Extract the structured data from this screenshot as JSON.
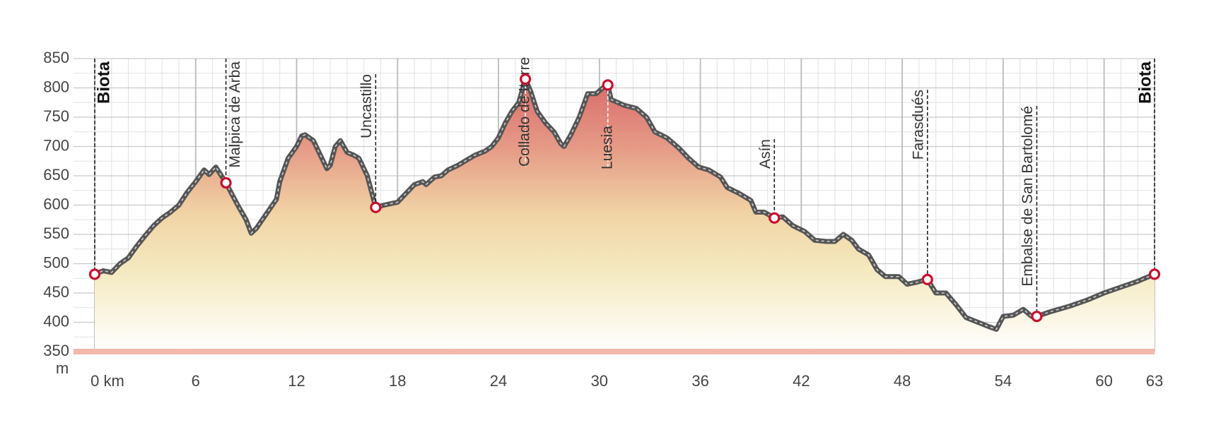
{
  "chart_data": {
    "type": "area",
    "y_unit": "m",
    "x": [
      0,
      0.5,
      1,
      1.5,
      2,
      2.5,
      3,
      3.5,
      4,
      4.5,
      5,
      5.5,
      6,
      6.5,
      6.8,
      7.2,
      7.8,
      8.5,
      9,
      9.3,
      9.6,
      10.2,
      10.8,
      11,
      11.5,
      12,
      12.3,
      12.5,
      13,
      13.5,
      13.8,
      14,
      14.3,
      14.6,
      15,
      15.4,
      15.7,
      16.2,
      16.7,
      17.2,
      18,
      18.5,
      19,
      19.5,
      19.7,
      20.2,
      20.6,
      21,
      21.6,
      22,
      22.6,
      23.2,
      23.6,
      24,
      24.4,
      24.8,
      25.2,
      25.4,
      25.6,
      25.9,
      26.3,
      26.8,
      27.3,
      27.7,
      27.9,
      28.3,
      28.8,
      29.3,
      29.8,
      30.2,
      30.5,
      30.7,
      31.5,
      32.2,
      32.8,
      33.3,
      34,
      34.7,
      35.3,
      35.9,
      36.5,
      37.2,
      37.6,
      38.3,
      39,
      39.3,
      39.8,
      40.4,
      40.9,
      41.5,
      42.2,
      42.8,
      43.5,
      44,
      44.5,
      45,
      45.4,
      46,
      46.5,
      47,
      47.8,
      48.3,
      48.8,
      49.5,
      50,
      50.6,
      51.2,
      51.8,
      52.5,
      53.2,
      53.6,
      54,
      54.6,
      55.2,
      55.7,
      56,
      56.8,
      58,
      59,
      60,
      61,
      62,
      63
    ],
    "values": [
      482,
      488,
      485,
      500,
      510,
      530,
      548,
      565,
      578,
      588,
      600,
      622,
      640,
      660,
      652,
      665,
      638,
      600,
      575,
      552,
      560,
      585,
      610,
      640,
      680,
      700,
      718,
      720,
      710,
      680,
      662,
      668,
      700,
      710,
      690,
      685,
      680,
      650,
      596,
      600,
      605,
      620,
      635,
      640,
      635,
      648,
      650,
      660,
      668,
      675,
      685,
      692,
      700,
      715,
      740,
      760,
      775,
      795,
      815,
      795,
      760,
      740,
      725,
      705,
      700,
      720,
      750,
      790,
      790,
      800,
      805,
      780,
      770,
      765,
      750,
      725,
      715,
      698,
      680,
      665,
      660,
      648,
      630,
      620,
      608,
      588,
      588,
      578,
      580,
      565,
      555,
      540,
      538,
      538,
      550,
      540,
      525,
      515,
      490,
      478,
      478,
      465,
      468,
      473,
      450,
      450,
      430,
      408,
      400,
      392,
      388,
      410,
      412,
      422,
      410,
      410,
      418,
      428,
      438,
      450,
      460,
      470,
      482
    ],
    "xlim": [
      0,
      63
    ],
    "ylim": [
      350,
      850
    ],
    "xticks": [
      {
        "value": 0,
        "label": "0 km"
      },
      6,
      12,
      18,
      24,
      30,
      36,
      42,
      48,
      54,
      60,
      63
    ],
    "yticks": [
      350,
      400,
      450,
      500,
      550,
      600,
      650,
      700,
      750,
      800,
      850
    ],
    "grid": true,
    "line_color": "#555555",
    "marker_color": "#c8102e",
    "markers": [
      {
        "name": "Biota",
        "km": 0,
        "elevation": 482
      },
      {
        "name": "Malpica de Arba",
        "km": 7.8,
        "elevation": 638
      },
      {
        "name": "Uncastillo",
        "km": 16.7,
        "elevation": 596
      },
      {
        "name": "Collado de Itorre",
        "km": 25.6,
        "elevation": 815
      },
      {
        "name": "Luesia",
        "km": 30.5,
        "elevation": 805
      },
      {
        "name": "Asín",
        "km": 40.4,
        "elevation": 578
      },
      {
        "name": "Farasdués",
        "km": 49.5,
        "elevation": 473
      },
      {
        "name": "Embalse de San Bartolomé",
        "km": 56,
        "elevation": 410
      },
      {
        "name": "Biota",
        "km": 63,
        "elevation": 482
      }
    ]
  }
}
